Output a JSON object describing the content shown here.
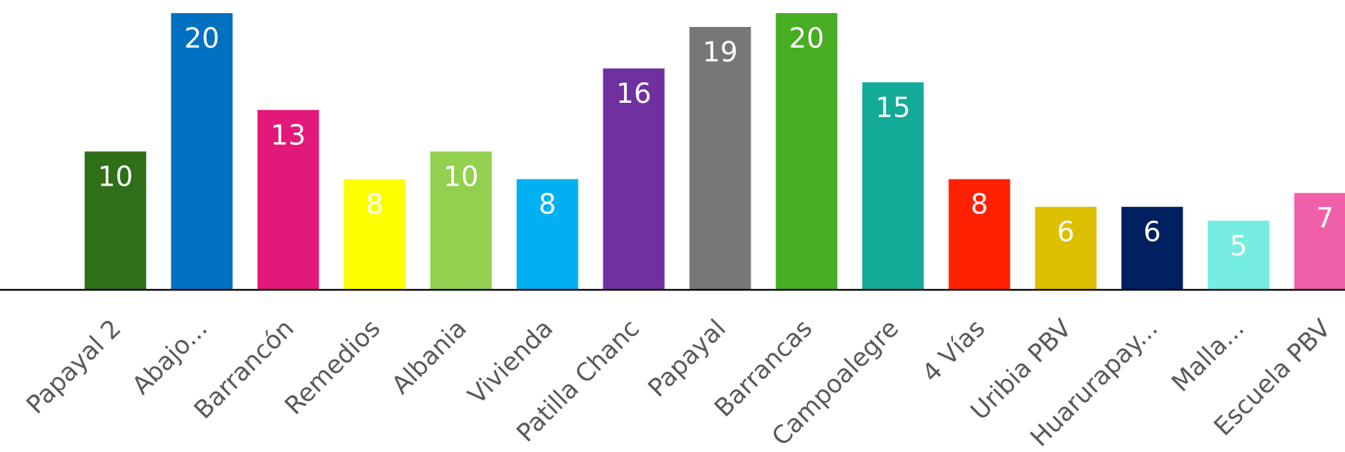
{
  "chart_data": {
    "type": "bar",
    "title": "",
    "xlabel": "",
    "ylabel": "",
    "ylim": [
      0,
      20
    ],
    "grid": false,
    "legend": "none",
    "categories": [
      "Papayal 2",
      "Abajo...",
      "Barrancón",
      "Remedios",
      "Albania",
      "Vivienda",
      "Patilla Chanc",
      "Papayal",
      "Barrancas",
      "Campoalegre",
      "4 Vías",
      "Uribia PBV",
      "Huarurapay...",
      "Malla...",
      "Escuela PBV"
    ],
    "values": [
      10,
      20,
      13,
      8,
      10,
      8,
      16,
      19,
      20,
      15,
      8,
      6,
      6,
      5,
      7
    ],
    "value_labels": [
      "10",
      "20",
      "13",
      "8",
      "10",
      "8",
      "16",
      "19",
      "20",
      "15",
      "8",
      "6",
      "6",
      "5",
      "7"
    ],
    "colors": [
      "#2e6f18",
      "#0070c0",
      "#e3197a",
      "#ffff00",
      "#92d050",
      "#00b0f0",
      "#7030a0",
      "#777777",
      "#47ad23",
      "#13aa98",
      "#ff2000",
      "#dcc000",
      "#002060",
      "#75ede0",
      "#f060a8"
    ]
  }
}
